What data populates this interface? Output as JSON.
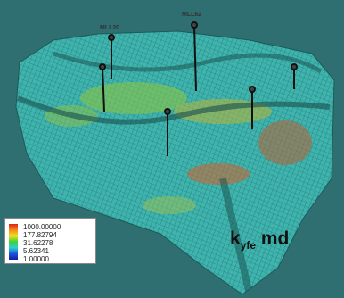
{
  "wells": [
    "MLL20",
    "MLL62"
  ],
  "legend": [
    "1000.00000",
    "177.82794",
    "31.62278",
    "5.62341",
    "1.00000"
  ],
  "property": {
    "symbol": "k",
    "subscript": "yfe",
    "unit": "md"
  }
}
